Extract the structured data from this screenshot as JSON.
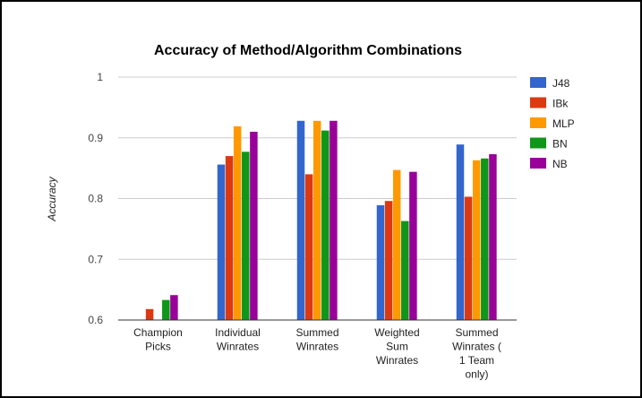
{
  "chart_data": {
    "type": "bar",
    "title": "Accuracy of Method/Algorithm Combinations",
    "ylabel": "Accuracy",
    "xlabel": "",
    "ylim": [
      0.6,
      1.0
    ],
    "yticks": [
      "1",
      "0.9",
      "0.8",
      "0.7",
      "0.6"
    ],
    "ytick_values": [
      1.0,
      0.9,
      0.8,
      0.7,
      0.6
    ],
    "grid": true,
    "legend_position": "right",
    "categories": [
      [
        "Champion",
        "Picks"
      ],
      [
        "Individual",
        "Winrates"
      ],
      [
        "Summed",
        "Winrates"
      ],
      [
        "Weighted",
        "Sum",
        "Winrates"
      ],
      [
        "Summed",
        "Winrates (",
        "1 Team",
        "only)"
      ]
    ],
    "series": [
      {
        "name": "J48",
        "color": "#3366cc",
        "values": [
          0.585,
          0.856,
          0.928,
          0.789,
          0.889
        ]
      },
      {
        "name": "IBk",
        "color": "#dc3912",
        "values": [
          0.618,
          0.87,
          0.84,
          0.796,
          0.803
        ]
      },
      {
        "name": "MLP",
        "color": "#ff9900",
        "values": [
          0.598,
          0.919,
          0.928,
          0.847,
          0.863
        ]
      },
      {
        "name": "BN",
        "color": "#109618",
        "values": [
          0.633,
          0.877,
          0.912,
          0.763,
          0.866
        ]
      },
      {
        "name": "NB",
        "color": "#990099",
        "values": [
          0.641,
          0.91,
          0.928,
          0.844,
          0.873
        ]
      }
    ]
  }
}
